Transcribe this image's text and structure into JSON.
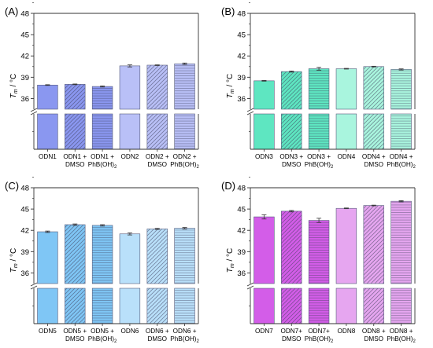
{
  "chart_data": [
    {
      "type": "bar",
      "panel_label": "(A)",
      "ylabel_main": "T",
      "ylabel_sub": "m",
      "ylabel_unit": " / °C",
      "yticks": [
        "36",
        "39",
        "42",
        "45",
        "48"
      ],
      "ylim": [
        34.5,
        48
      ],
      "axis_break": true,
      "categories": [
        [
          "ODN1"
        ],
        [
          "ODN1 +",
          "DMSO"
        ],
        [
          "ODN1 +",
          "PhB(OH)",
          "2"
        ],
        [
          "ODN2"
        ],
        [
          "ODN2 +",
          "DMSO"
        ],
        [
          "ODN2 +",
          "PhB(OH)",
          "2"
        ]
      ],
      "values": [
        37.9,
        38.0,
        37.7,
        40.6,
        40.7,
        40.9
      ],
      "errors": [
        0.05,
        0.05,
        0.08,
        0.15,
        0.05,
        0.1
      ],
      "colors": [
        "#8a97f0",
        "#8a97f0",
        "#8a97f0",
        "#b9c0f7",
        "#b9c0f7",
        "#b9c0f7"
      ],
      "patterns": [
        "none",
        "diag",
        "horiz",
        "none",
        "diag",
        "horiz"
      ]
    },
    {
      "type": "bar",
      "panel_label": "(B)",
      "ylabel_main": "T",
      "ylabel_sub": "m",
      "ylabel_unit": " / °C",
      "yticks": [
        "36",
        "39",
        "42",
        "45",
        "48"
      ],
      "ylim": [
        34.5,
        48
      ],
      "axis_break": true,
      "categories": [
        [
          "ODN3"
        ],
        [
          "ODN3 +",
          "DMSO"
        ],
        [
          "ODN3 +",
          "PhB(OH)",
          "2"
        ],
        [
          "ODN4"
        ],
        [
          "ODN4 +",
          "DMSO"
        ],
        [
          "ODN4 +",
          "PhB(OH)",
          "2"
        ]
      ],
      "values": [
        38.5,
        39.8,
        40.2,
        40.2,
        40.5,
        40.1
      ],
      "errors": [
        0.05,
        0.08,
        0.2,
        0.05,
        0.05,
        0.08
      ],
      "colors": [
        "#5ee6c1",
        "#5ee6c1",
        "#5ee6c1",
        "#a9f5de",
        "#a9f5de",
        "#a9f5de"
      ],
      "patterns": [
        "none",
        "diag",
        "horiz",
        "none",
        "diag",
        "horiz"
      ]
    },
    {
      "type": "bar",
      "panel_label": "(C)",
      "ylabel_main": "T",
      "ylabel_sub": "m",
      "ylabel_unit": " / °C",
      "yticks": [
        "36",
        "39",
        "42",
        "45",
        "48"
      ],
      "ylim": [
        34.5,
        48
      ],
      "axis_break": true,
      "categories": [
        [
          "ODN5"
        ],
        [
          "ODN5 +",
          "DMSO"
        ],
        [
          "ODN5 +",
          "PhB(OH)",
          "2"
        ],
        [
          "ODN6"
        ],
        [
          "ODN6 +",
          "DMSO"
        ],
        [
          "ODN6 +",
          "PhB(OH)",
          "2"
        ]
      ],
      "values": [
        41.8,
        42.8,
        42.7,
        41.5,
        42.2,
        42.3
      ],
      "errors": [
        0.1,
        0.1,
        0.1,
        0.15,
        0.08,
        0.1
      ],
      "colors": [
        "#7fc6f5",
        "#7fc6f5",
        "#7fc6f5",
        "#b9e0fa",
        "#b9e0fa",
        "#b9e0fa"
      ],
      "patterns": [
        "none",
        "diag",
        "horiz",
        "none",
        "diag",
        "horiz"
      ]
    },
    {
      "type": "bar",
      "panel_label": "(D)",
      "ylabel_main": "T",
      "ylabel_sub": "m",
      "ylabel_unit": " / °C",
      "yticks": [
        "36",
        "39",
        "42",
        "45",
        "48"
      ],
      "ylim": [
        34.5,
        48
      ],
      "axis_break": true,
      "categories": [
        [
          "ODN7"
        ],
        [
          "ODN7+",
          "DMSO"
        ],
        [
          "ODN7+",
          "PhB(OH)",
          "2"
        ],
        [
          "ODN8"
        ],
        [
          "ODN8 +",
          "DMSO"
        ],
        [
          "ODN8 +",
          "PhB(OH)",
          "2"
        ]
      ],
      "values": [
        43.9,
        44.7,
        43.4,
        45.1,
        45.5,
        46.1
      ],
      "errors": [
        0.3,
        0.1,
        0.3,
        0.05,
        0.05,
        0.08
      ],
      "colors": [
        "#d35de8",
        "#d35de8",
        "#d35de8",
        "#e6a6f0",
        "#e6a6f0",
        "#e6a6f0"
      ],
      "patterns": [
        "none",
        "diag",
        "horiz",
        "none",
        "diag",
        "horiz"
      ]
    }
  ]
}
